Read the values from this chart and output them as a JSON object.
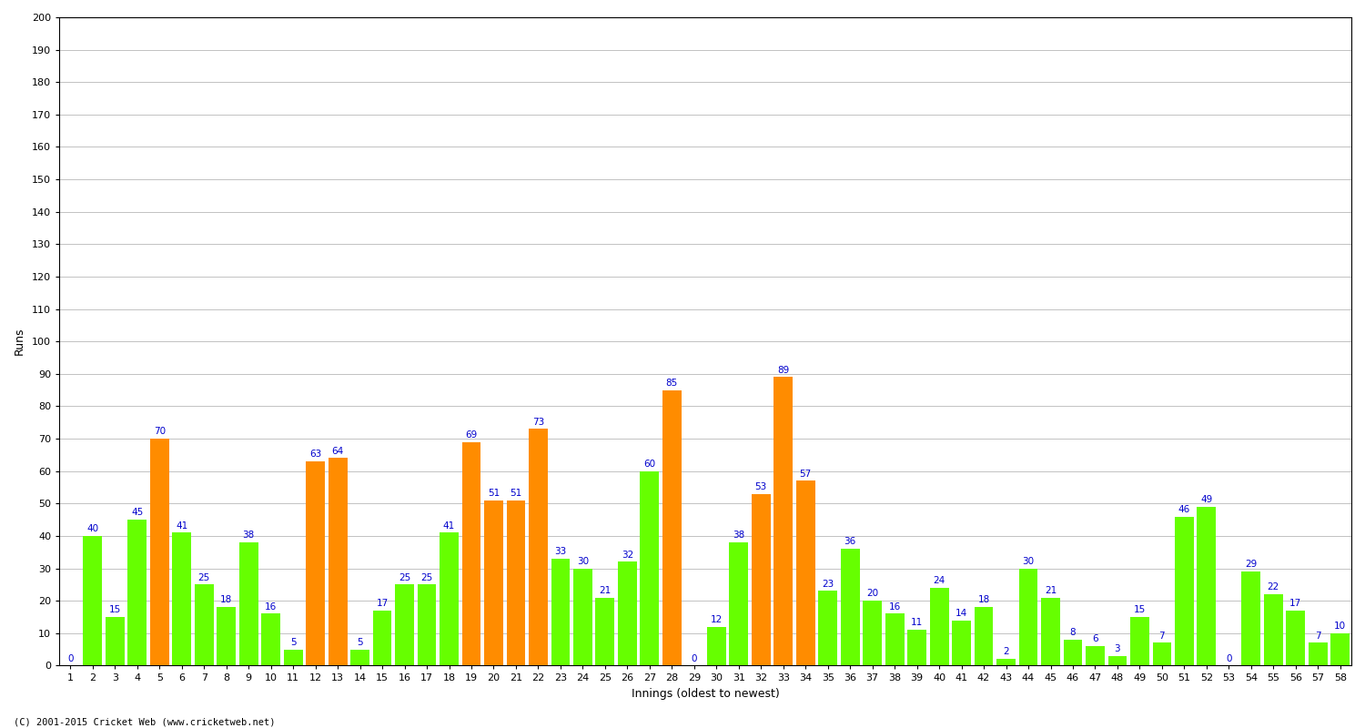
{
  "xlabel": "Innings (oldest to newest)",
  "ylabel": "Runs",
  "ylim": [
    0,
    200
  ],
  "yticks": [
    0,
    10,
    20,
    30,
    40,
    50,
    60,
    70,
    80,
    90,
    100,
    110,
    120,
    130,
    140,
    150,
    160,
    170,
    180,
    190,
    200
  ],
  "bars": [
    {
      "innings": 1,
      "value": 0,
      "color": "#66ff00"
    },
    {
      "innings": 2,
      "value": 40,
      "color": "#66ff00"
    },
    {
      "innings": 3,
      "value": 15,
      "color": "#66ff00"
    },
    {
      "innings": 4,
      "value": 45,
      "color": "#66ff00"
    },
    {
      "innings": 5,
      "value": 70,
      "color": "#ff8c00"
    },
    {
      "innings": 6,
      "value": 41,
      "color": "#66ff00"
    },
    {
      "innings": 7,
      "value": 25,
      "color": "#66ff00"
    },
    {
      "innings": 8,
      "value": 18,
      "color": "#66ff00"
    },
    {
      "innings": 9,
      "value": 38,
      "color": "#66ff00"
    },
    {
      "innings": 10,
      "value": 16,
      "color": "#66ff00"
    },
    {
      "innings": 11,
      "value": 5,
      "color": "#66ff00"
    },
    {
      "innings": 12,
      "value": 63,
      "color": "#ff8c00"
    },
    {
      "innings": 13,
      "value": 64,
      "color": "#ff8c00"
    },
    {
      "innings": 14,
      "value": 5,
      "color": "#66ff00"
    },
    {
      "innings": 15,
      "value": 17,
      "color": "#66ff00"
    },
    {
      "innings": 16,
      "value": 25,
      "color": "#66ff00"
    },
    {
      "innings": 17,
      "value": 25,
      "color": "#66ff00"
    },
    {
      "innings": 18,
      "value": 41,
      "color": "#66ff00"
    },
    {
      "innings": 19,
      "value": 69,
      "color": "#ff8c00"
    },
    {
      "innings": 20,
      "value": 51,
      "color": "#ff8c00"
    },
    {
      "innings": 21,
      "value": 51,
      "color": "#ff8c00"
    },
    {
      "innings": 22,
      "value": 73,
      "color": "#ff8c00"
    },
    {
      "innings": 23,
      "value": 33,
      "color": "#66ff00"
    },
    {
      "innings": 24,
      "value": 30,
      "color": "#66ff00"
    },
    {
      "innings": 25,
      "value": 21,
      "color": "#66ff00"
    },
    {
      "innings": 26,
      "value": 32,
      "color": "#66ff00"
    },
    {
      "innings": 27,
      "value": 60,
      "color": "#66ff00"
    },
    {
      "innings": 28,
      "value": 85,
      "color": "#ff8c00"
    },
    {
      "innings": 29,
      "value": 0,
      "color": "#66ff00"
    },
    {
      "innings": 30,
      "value": 12,
      "color": "#66ff00"
    },
    {
      "innings": 31,
      "value": 38,
      "color": "#66ff00"
    },
    {
      "innings": 32,
      "value": 53,
      "color": "#ff8c00"
    },
    {
      "innings": 33,
      "value": 89,
      "color": "#ff8c00"
    },
    {
      "innings": 34,
      "value": 57,
      "color": "#ff8c00"
    },
    {
      "innings": 35,
      "value": 23,
      "color": "#66ff00"
    },
    {
      "innings": 36,
      "value": 36,
      "color": "#66ff00"
    },
    {
      "innings": 37,
      "value": 20,
      "color": "#66ff00"
    },
    {
      "innings": 38,
      "value": 16,
      "color": "#66ff00"
    },
    {
      "innings": 39,
      "value": 11,
      "color": "#66ff00"
    },
    {
      "innings": 40,
      "value": 24,
      "color": "#66ff00"
    },
    {
      "innings": 41,
      "value": 14,
      "color": "#66ff00"
    },
    {
      "innings": 42,
      "value": 18,
      "color": "#66ff00"
    },
    {
      "innings": 43,
      "value": 2,
      "color": "#66ff00"
    },
    {
      "innings": 44,
      "value": 30,
      "color": "#66ff00"
    },
    {
      "innings": 45,
      "value": 21,
      "color": "#66ff00"
    },
    {
      "innings": 46,
      "value": 8,
      "color": "#66ff00"
    },
    {
      "innings": 47,
      "value": 6,
      "color": "#66ff00"
    },
    {
      "innings": 48,
      "value": 3,
      "color": "#66ff00"
    },
    {
      "innings": 49,
      "value": 15,
      "color": "#66ff00"
    },
    {
      "innings": 50,
      "value": 7,
      "color": "#66ff00"
    },
    {
      "innings": 51,
      "value": 46,
      "color": "#66ff00"
    },
    {
      "innings": 52,
      "value": 49,
      "color": "#66ff00"
    },
    {
      "innings": 53,
      "value": 0,
      "color": "#66ff00"
    },
    {
      "innings": 54,
      "value": 29,
      "color": "#66ff00"
    },
    {
      "innings": 55,
      "value": 22,
      "color": "#66ff00"
    },
    {
      "innings": 56,
      "value": 17,
      "color": "#66ff00"
    },
    {
      "innings": 57,
      "value": 7,
      "color": "#66ff00"
    },
    {
      "innings": 58,
      "value": 10,
      "color": "#66ff00"
    }
  ],
  "label_color": "#0000cc",
  "label_fontsize": 7.5,
  "bar_width": 0.85,
  "bg_color": "#ffffff",
  "grid_color": "#aaaaaa",
  "axis_label_fontsize": 9,
  "tick_fontsize": 8,
  "footer": "(C) 2001-2015 Cricket Web (www.cricketweb.net)"
}
